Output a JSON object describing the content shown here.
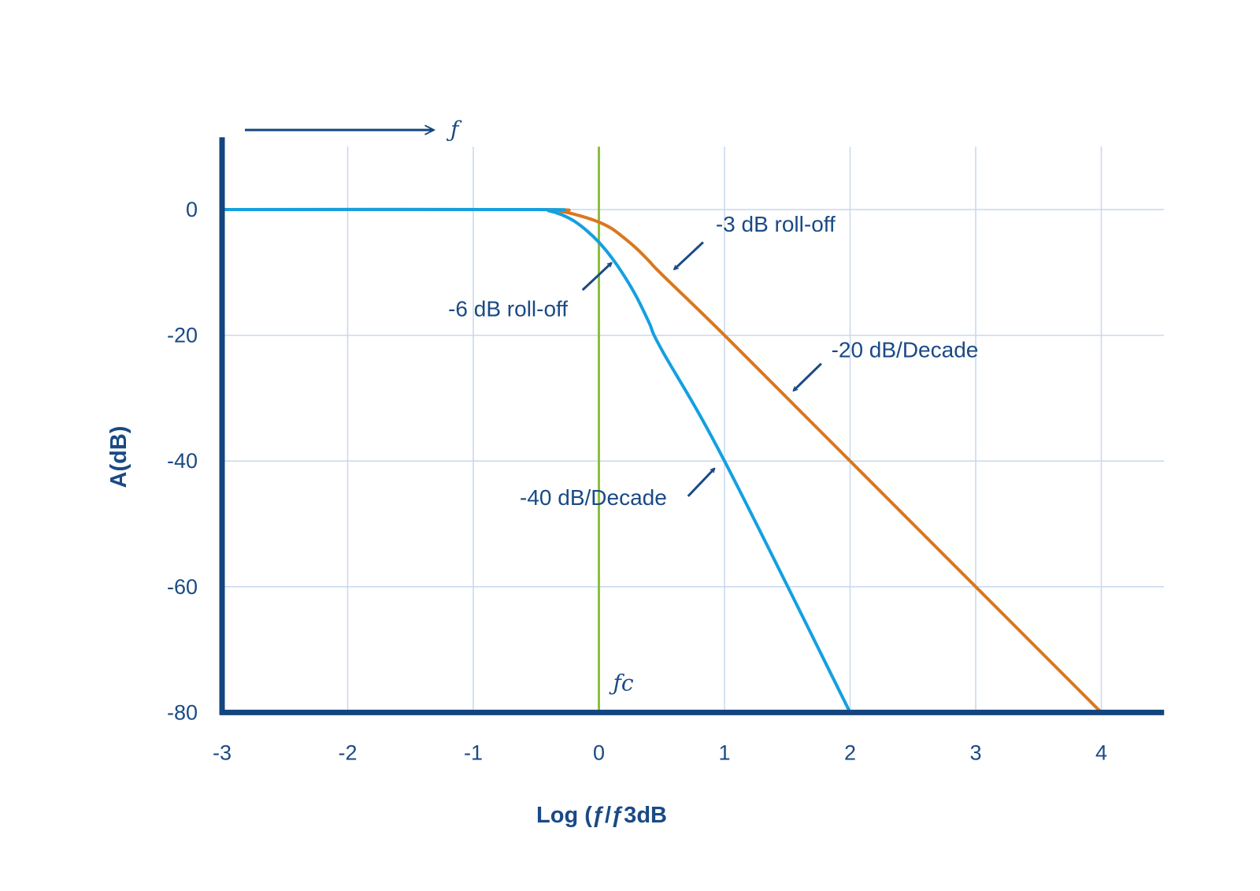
{
  "chart_data": {
    "type": "line",
    "xlabel": "Log (ƒ/ƒ3dB",
    "ylabel": "A(dB)",
    "xlim": [
      -3,
      4.5
    ],
    "ylim": [
      -80,
      10
    ],
    "x_ticks": [
      "-3",
      "-2",
      "-1",
      "0",
      "1",
      "2",
      "3",
      "4"
    ],
    "y_ticks": [
      "0",
      "-20",
      "-40",
      "-60",
      "-80"
    ],
    "grid": true,
    "frequency_arrow_label": "ƒ",
    "cutoff_marker": {
      "x": 0,
      "label": "ƒc"
    },
    "series": [
      {
        "color": "#d9781f",
        "x": [
          -3,
          -0.5,
          -0.3,
          -0.15,
          0,
          0.1,
          0.2,
          0.3,
          0.4,
          0.5,
          1,
          2,
          3,
          4
        ],
        "y": [
          0,
          0,
          -0.3,
          -1,
          -2,
          -3,
          -4.5,
          -6.2,
          -8.2,
          -10.3,
          -20,
          -40,
          -60,
          -80
        ]
      },
      {
        "color": "#14a0e0",
        "x": [
          -3,
          -0.5,
          -0.4,
          -0.3,
          -0.2,
          -0.1,
          0,
          0.1,
          0.2,
          0.3,
          0.4,
          0.5,
          1,
          2
        ],
        "y": [
          0,
          0,
          -0.2,
          -0.8,
          -1.8,
          -3.3,
          -5.2,
          -7.6,
          -10.5,
          -13.9,
          -18,
          -22.3,
          -40,
          -80
        ]
      }
    ],
    "annotations": [
      {
        "text": "-3 dB roll-off",
        "x": 0.93,
        "y": -3.5,
        "arrow_from": [
          0.83,
          -5.2
        ],
        "arrow_to": [
          0.6,
          -9.5
        ]
      },
      {
        "text": "-6 dB roll-off",
        "x": -1.2,
        "y": -17,
        "arrow_from": [
          -0.13,
          -12.8
        ],
        "arrow_to": [
          0.1,
          -8.5
        ]
      },
      {
        "text": "-20 dB/Decade",
        "x": 1.85,
        "y": -23.5,
        "arrow_from": [
          1.77,
          -24.5
        ],
        "arrow_to": [
          1.55,
          -28.8
        ]
      },
      {
        "text": "-40 dB/Decade",
        "x": -0.63,
        "y": -47,
        "arrow_from": [
          0.71,
          -45.6
        ],
        "arrow_to": [
          0.92,
          -41.2
        ]
      }
    ]
  },
  "colors": {
    "axis": "#13457e",
    "grid": "#c9d7ee",
    "text": "#1a4a85",
    "cutoff_line": "#8ac03c"
  }
}
